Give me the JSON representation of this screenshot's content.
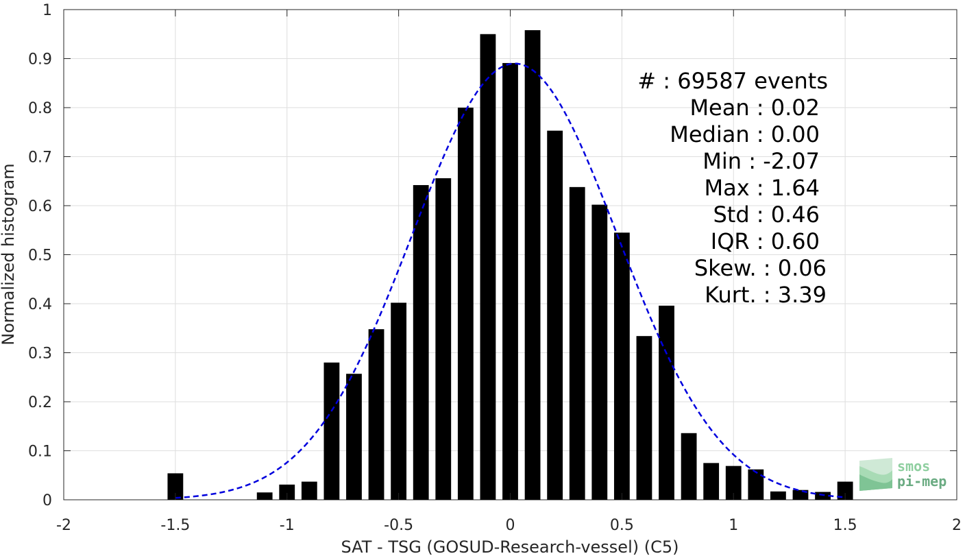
{
  "chart_data": {
    "type": "bar",
    "xlabel": "SAT - TSG (GOSUD-Research-vessel) (C5)",
    "ylabel": "Normalized histogram",
    "xlim": [
      -2,
      2
    ],
    "ylim": [
      0,
      1
    ],
    "xticks": [
      -2,
      -1.5,
      -1,
      -0.5,
      0,
      0.5,
      1,
      1.5,
      2
    ],
    "xtick_labels": [
      "-2",
      "-1.5",
      "-1",
      "-0.5",
      "0",
      "0.5",
      "1",
      "1.5",
      "2"
    ],
    "yticks": [
      0,
      0.1,
      0.2,
      0.3,
      0.4,
      0.5,
      0.6,
      0.7,
      0.8,
      0.9,
      1
    ],
    "ytick_labels": [
      "0",
      "0.1",
      "0.2",
      "0.3",
      "0.4",
      "0.5",
      "0.6",
      "0.7",
      "0.8",
      "0.9",
      "1"
    ],
    "grid": true,
    "bar_color": "#000000",
    "bar_width": 0.07,
    "bars": [
      {
        "x": -1.5,
        "y": 0.054
      },
      {
        "x": -1.1,
        "y": 0.015
      },
      {
        "x": -1.0,
        "y": 0.031
      },
      {
        "x": -0.9,
        "y": 0.037
      },
      {
        "x": -0.8,
        "y": 0.28
      },
      {
        "x": -0.7,
        "y": 0.257
      },
      {
        "x": -0.6,
        "y": 0.348
      },
      {
        "x": -0.5,
        "y": 0.402
      },
      {
        "x": -0.4,
        "y": 0.642
      },
      {
        "x": -0.3,
        "y": 0.656
      },
      {
        "x": -0.2,
        "y": 0.8
      },
      {
        "x": -0.1,
        "y": 0.95
      },
      {
        "x": 0.0,
        "y": 0.891
      },
      {
        "x": 0.1,
        "y": 0.958
      },
      {
        "x": 0.2,
        "y": 0.753
      },
      {
        "x": 0.3,
        "y": 0.638
      },
      {
        "x": 0.4,
        "y": 0.602
      },
      {
        "x": 0.5,
        "y": 0.545
      },
      {
        "x": 0.6,
        "y": 0.334
      },
      {
        "x": 0.7,
        "y": 0.396
      },
      {
        "x": 0.8,
        "y": 0.136
      },
      {
        "x": 0.9,
        "y": 0.075
      },
      {
        "x": 1.0,
        "y": 0.069
      },
      {
        "x": 1.1,
        "y": 0.062
      },
      {
        "x": 1.2,
        "y": 0.017
      },
      {
        "x": 1.3,
        "y": 0.02
      },
      {
        "x": 1.4,
        "y": 0.016
      },
      {
        "x": 1.5,
        "y": 0.037
      }
    ],
    "fit_curve": {
      "type": "gaussian",
      "style": "dashed",
      "color": "#0000dd",
      "peak": 0.89,
      "mean": 0.02,
      "std": 0.46,
      "x_range": [
        -1.5,
        1.5
      ]
    }
  },
  "stats": [
    {
      "label": "#  : 69587 events"
    },
    {
      "label": "Mean : 0.02"
    },
    {
      "label": "Median : 0.00"
    },
    {
      "label": "Min : -2.07"
    },
    {
      "label": "Max : 1.64"
    },
    {
      "label": "Std : 0.46"
    },
    {
      "label": "IQR : 0.60"
    },
    {
      "label": "Skew. : 0.06"
    },
    {
      "label": "Kurt. : 3.39"
    }
  ],
  "logo": {
    "line1": "smos",
    "line2": "pi-mep",
    "color1": "#8fcfa0",
    "color2": "#6aab82"
  }
}
